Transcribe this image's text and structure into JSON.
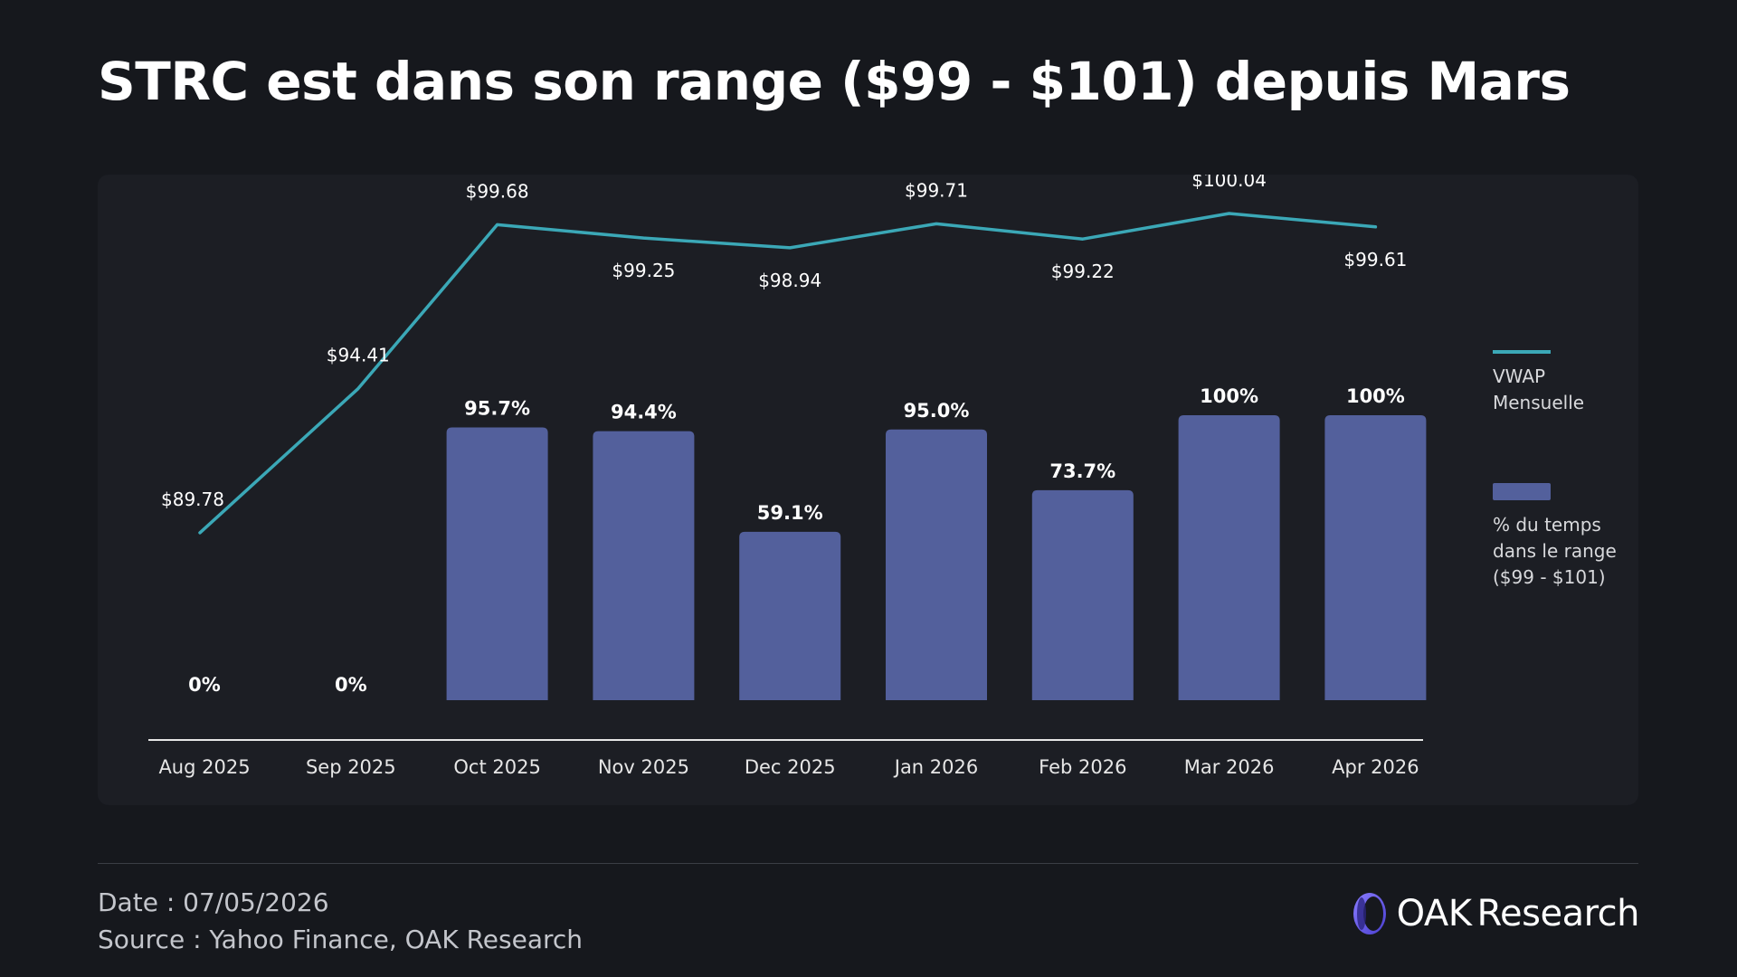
{
  "title": "STRC est dans son range ($99 - $101) depuis Mars",
  "footer": {
    "date": "Date : 07/05/2026",
    "source": "Source : Yahoo Finance, OAK Research"
  },
  "brand": {
    "word1": "OAK",
    "word2": "Research"
  },
  "colors": {
    "background": "#16181d",
    "panel": "#1c1e24",
    "line": "#3ba8b7",
    "bar": "#53609c",
    "text": "#ffffff"
  },
  "chart_data": {
    "type": "bar",
    "categories": [
      "Aug 2025",
      "Sep 2025",
      "Oct 2025",
      "Nov 2025",
      "Dec 2025",
      "Jan 2026",
      "Feb 2026",
      "Mar 2026",
      "Apr 2026"
    ],
    "series": [
      {
        "name": "% du temps dans le range ($99 - $101)",
        "kind": "bar",
        "values": [
          0,
          0,
          95.7,
          94.4,
          59.1,
          95.0,
          73.7,
          100,
          100
        ],
        "labels": [
          "0%",
          "0%",
          "95.7%",
          "94.4%",
          "59.1%",
          "95.0%",
          "73.7%",
          "100%",
          "100%"
        ]
      },
      {
        "name": "VWAP Mensuelle",
        "kind": "line",
        "values": [
          89.78,
          94.41,
          99.68,
          99.25,
          98.94,
          99.71,
          99.22,
          100.04,
          99.61
        ],
        "labels": [
          "$89.78",
          "$94.41",
          "$99.68",
          "$99.25",
          "$98.94",
          "$99.71",
          "$99.22",
          "$100.04",
          "$99.61"
        ]
      }
    ],
    "legend": [
      {
        "kind": "line",
        "lines": [
          "VWAP",
          "Mensuelle"
        ]
      },
      {
        "kind": "bar",
        "lines": [
          "% du temps",
          "dans le range",
          "($99 - $101)"
        ]
      }
    ],
    "legend_position": "right",
    "title": "",
    "xlabel": "",
    "ylabel": "",
    "grid": false
  }
}
